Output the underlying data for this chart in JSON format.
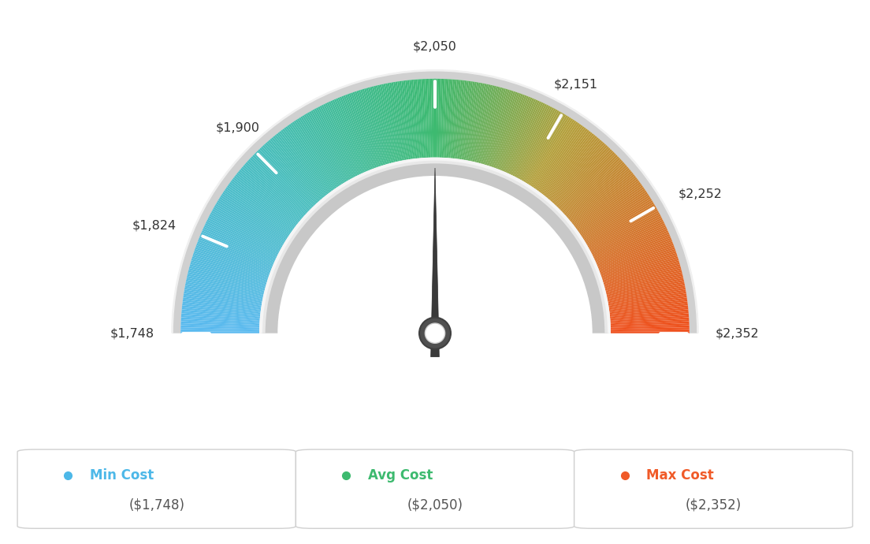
{
  "min_val": 1748,
  "max_val": 2352,
  "avg_val": 2050,
  "tick_labels": [
    "$1,748",
    "$1,824",
    "$1,900",
    "$2,050",
    "$2,151",
    "$2,252",
    "$2,352"
  ],
  "tick_values": [
    1748,
    1824,
    1900,
    2050,
    2151,
    2252,
    2352
  ],
  "legend": [
    {
      "label": "Min Cost",
      "value": "($1,748)",
      "color": "#4db8e8"
    },
    {
      "label": "Avg Cost",
      "value": "($2,050)",
      "color": "#3dba6f"
    },
    {
      "label": "Max Cost",
      "value": "($2,352)",
      "color": "#f05a28"
    }
  ],
  "bg_color": "#ffffff",
  "gradient_stops": [
    [
      0.0,
      [
        91,
        186,
        240
      ]
    ],
    [
      0.25,
      [
        72,
        190,
        190
      ]
    ],
    [
      0.5,
      [
        61,
        186,
        112
      ]
    ],
    [
      0.68,
      [
        180,
        160,
        60
      ]
    ],
    [
      1.0,
      [
        240,
        80,
        30
      ]
    ]
  ]
}
